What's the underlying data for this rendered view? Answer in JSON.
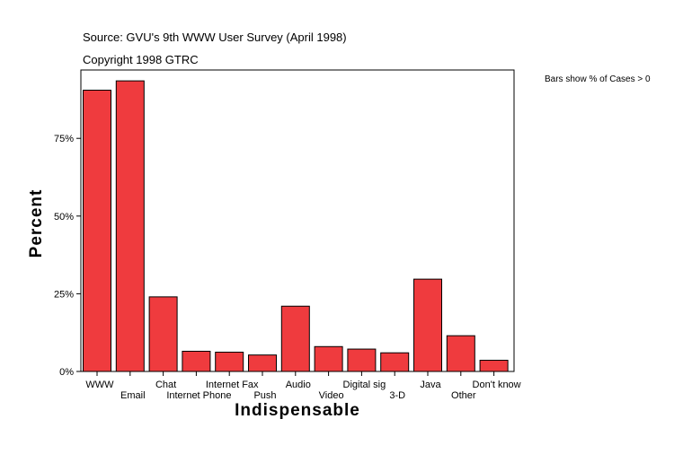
{
  "header": {
    "source": "Source: GVU's 9th WWW User Survey (April 1998)",
    "copyright": "Copyright 1998 GTRC",
    "note": "Bars show % of Cases > 0"
  },
  "chart_data": {
    "type": "bar",
    "categories": [
      "WWW",
      "Email",
      "Chat",
      "Internet Phone",
      "Internet Fax",
      "Push",
      "Audio",
      "Video",
      "Digital sig",
      "3-D",
      "Java",
      "Other",
      "Don't know"
    ],
    "values": [
      90.5,
      93.5,
      24,
      6.5,
      6.2,
      5.3,
      21,
      8,
      7.2,
      6,
      29.7,
      11.5,
      3.6
    ],
    "xlabel": "Indispensable",
    "ylabel": "Percent",
    "ylim": [
      0,
      97
    ],
    "yticks": [
      0,
      25,
      50,
      75
    ],
    "ytick_labels": [
      "0%",
      "25%",
      "50%",
      "75%"
    ],
    "grid": false,
    "legend": "top-right",
    "bar_color": "#ef3b3e"
  }
}
